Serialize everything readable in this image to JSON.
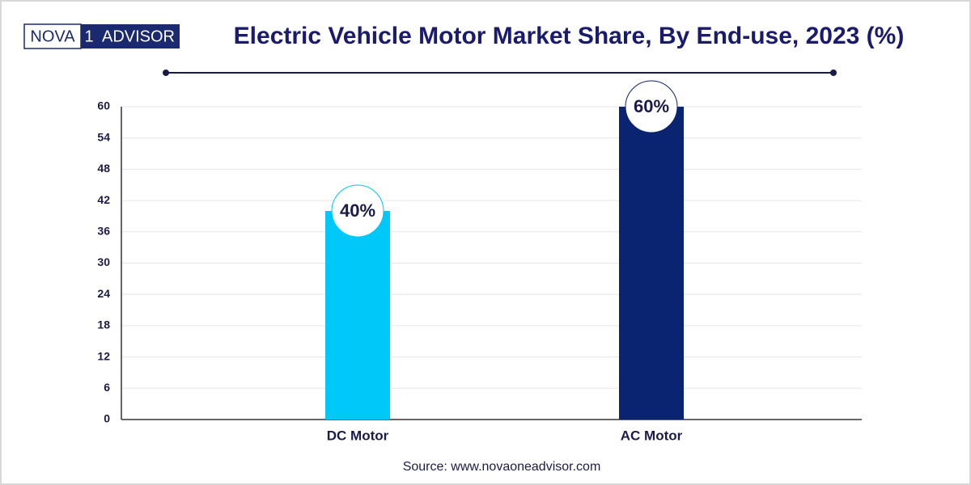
{
  "logo": {
    "left": "NOVA",
    "mid": "1",
    "right": "ADVISOR"
  },
  "chart_data": {
    "type": "bar",
    "title": "Electric Vehicle Motor Market Share, By End-use, 2023 (%)",
    "categories": [
      "DC Motor",
      "AC Motor"
    ],
    "values": [
      40,
      60
    ],
    "value_labels": [
      "40%",
      "60%"
    ],
    "colors": [
      "#00c8f8",
      "#0b2471"
    ],
    "ylim": [
      0,
      60
    ],
    "yticks": [
      0,
      6,
      12,
      18,
      24,
      30,
      36,
      42,
      48,
      54,
      60
    ],
    "grid": true,
    "source": "Source: www.novaoneadvisor.com"
  }
}
